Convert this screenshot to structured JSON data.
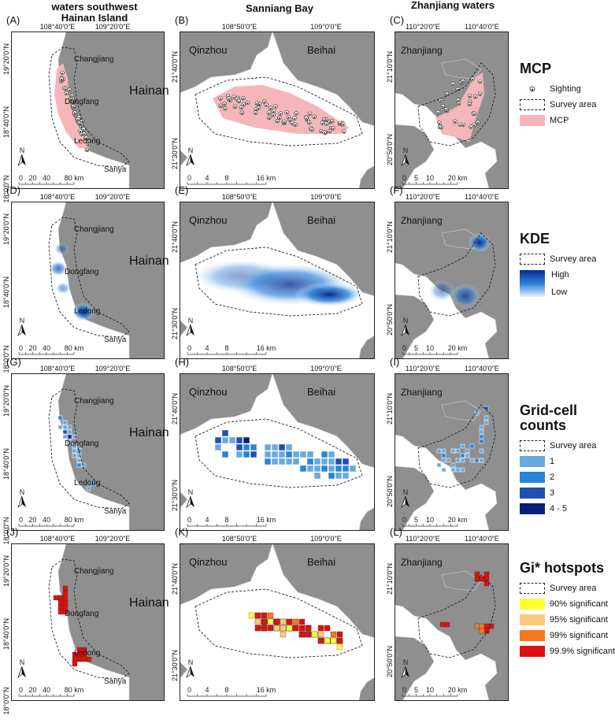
{
  "columns": [
    {
      "title": "waters southwest\nHainan Island"
    },
    {
      "title": "Sanniang Bay"
    },
    {
      "title": "Zhanjiang waters"
    }
  ],
  "panels": [
    {
      "label": "(A)",
      "col": 0,
      "row": 0,
      "method": "mcp"
    },
    {
      "label": "(B)",
      "col": 1,
      "row": 0,
      "method": "mcp"
    },
    {
      "label": "(C)",
      "col": 2,
      "row": 0,
      "method": "mcp"
    },
    {
      "label": "(D)",
      "col": 0,
      "row": 1,
      "method": "kde"
    },
    {
      "label": "(E)",
      "col": 1,
      "row": 1,
      "method": "kde"
    },
    {
      "label": "(F)",
      "col": 2,
      "row": 1,
      "method": "kde"
    },
    {
      "label": "(G)",
      "col": 0,
      "row": 2,
      "method": "grid"
    },
    {
      "label": "(H)",
      "col": 1,
      "row": 2,
      "method": "grid"
    },
    {
      "label": "(I)",
      "col": 2,
      "row": 2,
      "method": "grid"
    },
    {
      "label": "(J)",
      "col": 0,
      "row": 3,
      "method": "gi"
    },
    {
      "label": "(K)",
      "col": 1,
      "row": 3,
      "method": "gi"
    },
    {
      "label": "(L)",
      "col": 2,
      "row": 3,
      "method": "gi"
    }
  ],
  "regions": [
    {
      "lon_ticks": [
        "108°40'0\"E",
        "109°20'0\"E"
      ],
      "lat_ticks": [
        "19°20'0\"N",
        "18°40'0\"N",
        "18°0'0\"N"
      ],
      "places": [
        "Changjiang",
        "Dongfang",
        "Ledong",
        "Sanya",
        "Hainan"
      ],
      "scale": [
        "0",
        "20",
        "40",
        "80 km"
      ]
    },
    {
      "lon_ticks": [
        "108°50'0\"E",
        "109°0'0\"E"
      ],
      "lat_ticks": [
        "21°40'0\"N",
        "21°30'0\"N"
      ],
      "places": [
        "Qinzhou",
        "Beihai"
      ],
      "scale": [
        "0",
        "4",
        "8",
        "16 km"
      ]
    },
    {
      "lon_ticks": [
        "110°20'0\"E",
        "110°40'0\"E"
      ],
      "lat_ticks": [
        "21°10'0\"N",
        "20°50'0\"N"
      ],
      "places": [
        "Zhanjiang"
      ],
      "scale": [
        "0",
        "5",
        "10",
        "20 km"
      ]
    }
  ],
  "north_label": "N",
  "legends": [
    {
      "title": "MCP",
      "items": [
        {
          "label": "Sighting",
          "kind": "sighting"
        },
        {
          "label": "Survey area",
          "kind": "dashed"
        },
        {
          "label": "MCP",
          "kind": "fill",
          "color": "#f4b6b8"
        }
      ]
    },
    {
      "title": "KDE",
      "items": [
        {
          "label": "Survey area",
          "kind": "dashed"
        },
        {
          "label": "High",
          "kind": "ramp-high"
        },
        {
          "label": "Low",
          "kind": "ramp-low"
        }
      ],
      "ramp": [
        "#0a2b8c",
        "#2c7fd8",
        "#e6f3ff"
      ]
    },
    {
      "title": "Grid-cell\ncounts",
      "items": [
        {
          "label": "Survey area",
          "kind": "dashed"
        },
        {
          "label": "1",
          "kind": "fill",
          "color": "#6aa9dc"
        },
        {
          "label": "2",
          "kind": "fill",
          "color": "#2b83d6"
        },
        {
          "label": "3",
          "kind": "fill",
          "color": "#1f4fb0"
        },
        {
          "label": "4 - 5",
          "kind": "fill",
          "color": "#0b1f7a"
        }
      ]
    },
    {
      "title": "Gi* hotspots",
      "items": [
        {
          "label": "Survey area",
          "kind": "dashed"
        },
        {
          "label": "90% significant",
          "kind": "fill",
          "color": "#ffff33"
        },
        {
          "label": "95% significant",
          "kind": "fill",
          "color": "#fbc97a"
        },
        {
          "label": "99% significant",
          "kind": "fill",
          "color": "#f47a1f"
        },
        {
          "label": "99.9% significant",
          "kind": "fill",
          "color": "#e01010"
        }
      ]
    }
  ],
  "colors": {
    "land": "#8f8f8f",
    "water": "#ffffff",
    "mcp": "#f4b6b8",
    "survey": "#222222"
  }
}
